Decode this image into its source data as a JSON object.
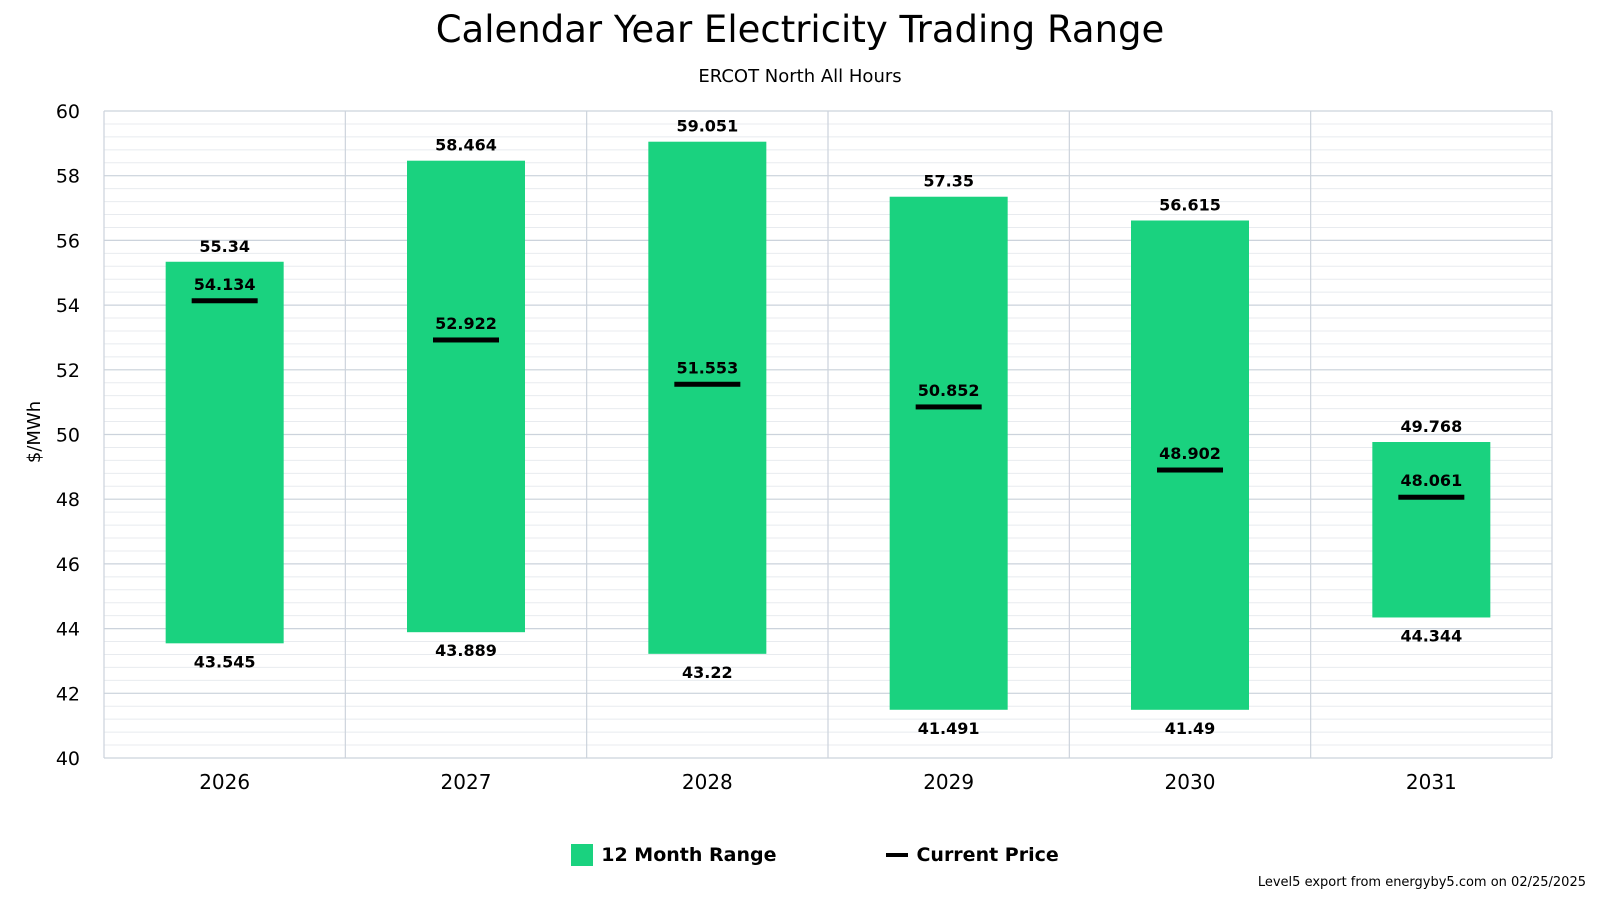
{
  "chart_data": {
    "type": "bar",
    "title": "Calendar Year Electricity Trading Range",
    "subtitle": "ERCOT North All Hours",
    "ylabel": "$/MWh",
    "xlabel": "",
    "ylim": [
      40,
      60
    ],
    "ytick_step": 2,
    "categories": [
      "2026",
      "2027",
      "2028",
      "2029",
      "2030",
      "2031"
    ],
    "series": [
      {
        "name": "12 Month Range",
        "type": "range",
        "low": [
          43.545,
          43.889,
          43.22,
          41.491,
          41.49,
          44.344
        ],
        "high": [
          55.34,
          58.464,
          59.051,
          57.35,
          56.615,
          49.768
        ],
        "low_labels": [
          "43.545",
          "43.889",
          "43.22",
          "41.491",
          "41.49",
          "44.344"
        ],
        "high_labels": [
          "55.34",
          "58.464",
          "59.051",
          "57.35",
          "56.615",
          "49.768"
        ],
        "color": "#1ad27f"
      },
      {
        "name": "Current Price",
        "type": "marker",
        "values": [
          54.134,
          52.922,
          51.553,
          50.852,
          48.902,
          48.061
        ],
        "labels": [
          "54.134",
          "52.922",
          "51.553",
          "50.852",
          "48.902",
          "48.061"
        ],
        "color": "#000000"
      }
    ],
    "grid": true,
    "legend_position": "bottom-center"
  },
  "legend": {
    "range_label": "12 Month Range",
    "price_label": "Current Price"
  },
  "footer": "Level5 export from energyby5.com on 02/25/2025"
}
